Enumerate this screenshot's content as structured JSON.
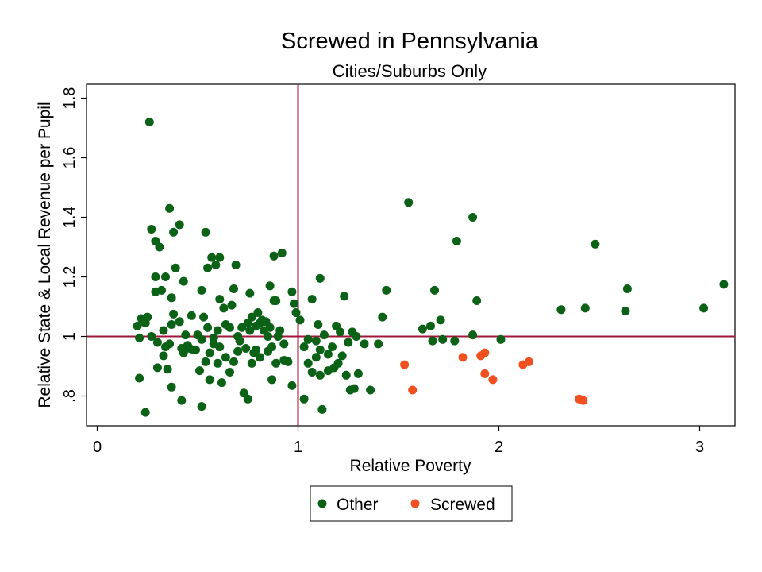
{
  "chart_data": {
    "type": "scatter",
    "title": "Screwed in Pennsylvania",
    "subtitle": "Cities/Suburbs Only",
    "xlabel": "Relative Poverty",
    "ylabel": "Relative State & Local Revenue per Pupil",
    "xlim": [
      0,
      3.2
    ],
    "ylim": [
      0.7,
      1.85
    ],
    "x_ticks": [
      0,
      1,
      2,
      3
    ],
    "x_tick_labels": [
      "0",
      "1",
      "2",
      "3"
    ],
    "y_ticks": [
      0.8,
      1.0,
      1.2,
      1.4,
      1.6,
      1.8
    ],
    "y_tick_labels": [
      ".8",
      "1",
      "1.2",
      "1.4",
      "1.6",
      "1.8"
    ],
    "reference_lines": {
      "x": 1,
      "y": 1,
      "color": "#a0163a"
    },
    "grid": false,
    "legend_position": "bottom",
    "series": [
      {
        "name": "Other",
        "color": "#0b6216",
        "points": [
          [
            0.26,
            1.72
          ],
          [
            0.36,
            1.43
          ],
          [
            0.27,
            1.36
          ],
          [
            0.29,
            1.32
          ],
          [
            0.31,
            1.3
          ],
          [
            0.38,
            1.35
          ],
          [
            0.41,
            1.375
          ],
          [
            0.54,
            1.35
          ],
          [
            0.29,
            1.2
          ],
          [
            0.34,
            1.2
          ],
          [
            0.39,
            1.23
          ],
          [
            0.57,
            1.265
          ],
          [
            0.61,
            1.265
          ],
          [
            0.59,
            1.24
          ],
          [
            0.55,
            1.23
          ],
          [
            0.69,
            1.24
          ],
          [
            0.88,
            1.27
          ],
          [
            0.92,
            1.28
          ],
          [
            0.43,
            1.185
          ],
          [
            0.32,
            1.155
          ],
          [
            0.37,
            1.13
          ],
          [
            0.29,
            1.15
          ],
          [
            0.52,
            1.155
          ],
          [
            0.68,
            1.16
          ],
          [
            0.86,
            1.17
          ],
          [
            0.76,
            1.145
          ],
          [
            0.61,
            1.125
          ],
          [
            0.89,
            1.12
          ],
          [
            0.98,
            1.11
          ],
          [
            1.11,
            1.195
          ],
          [
            0.22,
            1.06
          ],
          [
            0.2,
            1.035
          ],
          [
            0.24,
            1.045
          ],
          [
            0.25,
            1.065
          ],
          [
            0.21,
            0.995
          ],
          [
            0.27,
            1.0
          ],
          [
            0.3,
            0.98
          ],
          [
            0.33,
            1.02
          ],
          [
            0.34,
            0.965
          ],
          [
            0.36,
            0.975
          ],
          [
            0.37,
            1.04
          ],
          [
            0.38,
            1.075
          ],
          [
            0.41,
            1.05
          ],
          [
            0.42,
            0.96
          ],
          [
            0.43,
            0.945
          ],
          [
            0.44,
            1.005
          ],
          [
            0.46,
            0.96
          ],
          [
            0.47,
            1.07
          ],
          [
            0.48,
            0.955
          ],
          [
            0.5,
            1.005
          ],
          [
            0.52,
            0.99
          ],
          [
            0.53,
            1.065
          ],
          [
            0.55,
            1.03
          ],
          [
            0.56,
            0.945
          ],
          [
            0.58,
            0.995
          ],
          [
            0.6,
            1.02
          ],
          [
            0.61,
            0.965
          ],
          [
            0.63,
            1.095
          ],
          [
            0.64,
            1.04
          ],
          [
            0.66,
            1.03
          ],
          [
            0.67,
            1.105
          ],
          [
            0.7,
            1.0
          ],
          [
            0.71,
            0.985
          ],
          [
            0.72,
            1.03
          ],
          [
            0.74,
            0.96
          ],
          [
            0.75,
            1.045
          ],
          [
            0.76,
            1.02
          ],
          [
            0.77,
            1.065
          ],
          [
            0.78,
            0.945
          ],
          [
            0.79,
            1.035
          ],
          [
            0.8,
            1.08
          ],
          [
            0.81,
            1.045
          ],
          [
            0.82,
            1.055
          ],
          [
            0.83,
            1.02
          ],
          [
            0.84,
            1.05
          ],
          [
            0.85,
            1.0
          ],
          [
            0.86,
            1.03
          ],
          [
            0.87,
            0.965
          ],
          [
            0.88,
            1.12
          ],
          [
            0.9,
            1.0
          ],
          [
            0.91,
            1.02
          ],
          [
            0.93,
            0.92
          ],
          [
            0.95,
            0.915
          ],
          [
            0.97,
            1.15
          ],
          [
            0.99,
            1.08
          ],
          [
            1.01,
            1.055
          ],
          [
            1.03,
            0.965
          ],
          [
            1.05,
            0.99
          ],
          [
            1.07,
            1.125
          ],
          [
            1.09,
            0.985
          ],
          [
            1.1,
            1.04
          ],
          [
            1.11,
            0.955
          ],
          [
            1.13,
            1.005
          ],
          [
            1.15,
            0.94
          ],
          [
            1.17,
            0.965
          ],
          [
            1.19,
            1.035
          ],
          [
            1.21,
            1.015
          ],
          [
            1.23,
            1.135
          ],
          [
            1.25,
            0.98
          ],
          [
            1.27,
            1.015
          ],
          [
            1.29,
            1.0
          ],
          [
            1.33,
            0.975
          ],
          [
            1.4,
            0.975
          ],
          [
            1.42,
            1.065
          ],
          [
            1.44,
            1.155
          ],
          [
            1.62,
            1.025
          ],
          [
            1.66,
            1.035
          ],
          [
            1.67,
            0.985
          ],
          [
            1.71,
            1.055
          ],
          [
            1.72,
            0.99
          ],
          [
            1.68,
            1.155
          ],
          [
            1.78,
            0.985
          ],
          [
            1.87,
            1.005
          ],
          [
            2.01,
            0.99
          ],
          [
            0.21,
            0.86
          ],
          [
            0.24,
            0.745
          ],
          [
            0.3,
            0.895
          ],
          [
            0.33,
            0.935
          ],
          [
            0.35,
            0.89
          ],
          [
            0.37,
            0.83
          ],
          [
            0.42,
            0.785
          ],
          [
            0.45,
            0.97
          ],
          [
            0.49,
            0.955
          ],
          [
            0.51,
            0.885
          ],
          [
            0.52,
            0.765
          ],
          [
            0.54,
            0.915
          ],
          [
            0.56,
            0.855
          ],
          [
            0.58,
            0.975
          ],
          [
            0.6,
            0.91
          ],
          [
            0.62,
            0.845
          ],
          [
            0.64,
            0.93
          ],
          [
            0.66,
            0.88
          ],
          [
            0.68,
            0.915
          ],
          [
            0.7,
            0.95
          ],
          [
            0.73,
            0.81
          ],
          [
            0.75,
            0.79
          ],
          [
            0.77,
            0.91
          ],
          [
            0.79,
            0.955
          ],
          [
            0.81,
            0.93
          ],
          [
            0.85,
            0.95
          ],
          [
            0.87,
            0.855
          ],
          [
            0.89,
            0.91
          ],
          [
            0.93,
            0.975
          ],
          [
            0.97,
            0.835
          ],
          [
            1.03,
            0.79
          ],
          [
            1.05,
            0.91
          ],
          [
            1.07,
            0.88
          ],
          [
            1.09,
            0.93
          ],
          [
            1.11,
            0.87
          ],
          [
            1.12,
            0.755
          ],
          [
            1.15,
            0.885
          ],
          [
            1.18,
            0.895
          ],
          [
            1.2,
            0.91
          ],
          [
            1.22,
            0.935
          ],
          [
            1.24,
            0.87
          ],
          [
            1.26,
            0.82
          ],
          [
            1.28,
            0.825
          ],
          [
            1.3,
            0.875
          ],
          [
            1.36,
            0.82
          ],
          [
            1.55,
            1.45
          ],
          [
            1.79,
            1.32
          ],
          [
            1.87,
            1.4
          ],
          [
            1.89,
            1.12
          ],
          [
            2.48,
            1.31
          ],
          [
            2.31,
            1.09
          ],
          [
            2.43,
            1.095
          ],
          [
            2.63,
            1.085
          ],
          [
            2.64,
            1.16
          ],
          [
            3.02,
            1.095
          ],
          [
            3.12,
            1.175
          ]
        ]
      },
      {
        "name": "Screwed",
        "color": "#f05020",
        "points": [
          [
            1.53,
            0.905
          ],
          [
            1.57,
            0.82
          ],
          [
            1.82,
            0.93
          ],
          [
            1.91,
            0.935
          ],
          [
            1.93,
            0.945
          ],
          [
            1.93,
            0.875
          ],
          [
            1.97,
            0.855
          ],
          [
            2.12,
            0.905
          ],
          [
            2.15,
            0.915
          ],
          [
            2.4,
            0.79
          ],
          [
            2.42,
            0.785
          ]
        ]
      }
    ],
    "legend": [
      {
        "label": "Other",
        "color": "#0b6216"
      },
      {
        "label": "Screwed",
        "color": "#f05020"
      }
    ]
  }
}
